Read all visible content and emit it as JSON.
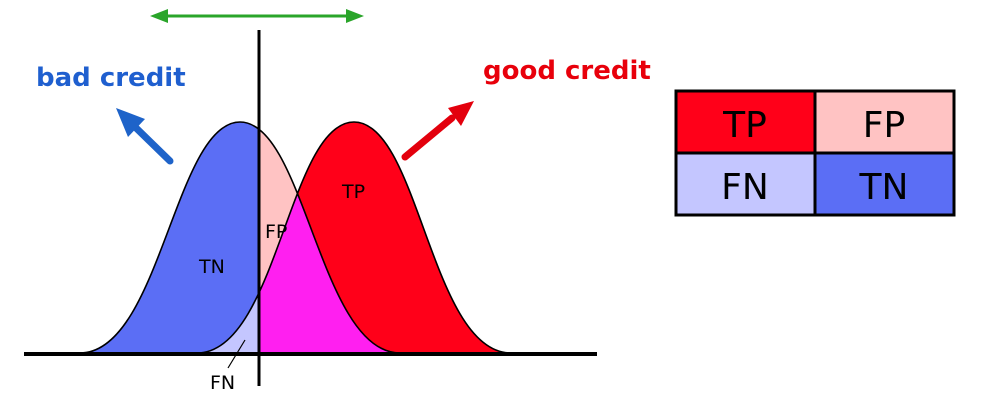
{
  "diagram": {
    "labels": {
      "bad": "bad credit",
      "good": "good credit",
      "tn": "TN",
      "fp": "FP",
      "tp": "TP",
      "fn": "FN"
    },
    "colors": {
      "bad_text": "#1f5fcf",
      "good_text": "#e8000b",
      "tn_fill": "#5b6ef5",
      "fp_fill": "#ffc3c3",
      "tp_fill": "#ff0019",
      "fn_fill": "#c4c6ff",
      "overlap_fill": "#ff1ff0",
      "threshold_arrow": "#2aa52a",
      "bad_arrow": "#1e63c9",
      "good_arrow": "#e3000d"
    }
  },
  "matrix": {
    "cells": [
      {
        "label": "TP",
        "color": "#ff0019"
      },
      {
        "label": "FP",
        "color": "#ffc3c3"
      },
      {
        "label": "FN",
        "color": "#c4c6ff"
      },
      {
        "label": "TN",
        "color": "#5b6ef5"
      }
    ]
  }
}
